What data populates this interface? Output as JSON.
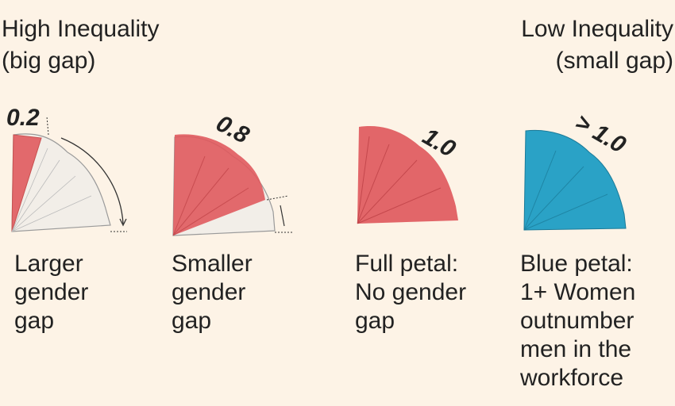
{
  "header": {
    "left": {
      "title": "High Inequality",
      "subtitle": "(big gap)"
    },
    "right": {
      "title": "Low Inequality",
      "subtitle": "(small gap)"
    }
  },
  "items": [
    {
      "label": "0.2",
      "caption": [
        "Larger",
        "gender",
        "gap"
      ]
    },
    {
      "label": "0.8",
      "caption": [
        "Smaller",
        "gender",
        "gap"
      ]
    },
    {
      "label": "1.0",
      "caption": [
        "Full petal:",
        "No gender",
        "gap"
      ]
    },
    {
      "label": "> 1.0",
      "caption": [
        "Blue petal:",
        "1+ Women",
        "outnumber",
        "men in the",
        "workforce"
      ]
    }
  ]
}
